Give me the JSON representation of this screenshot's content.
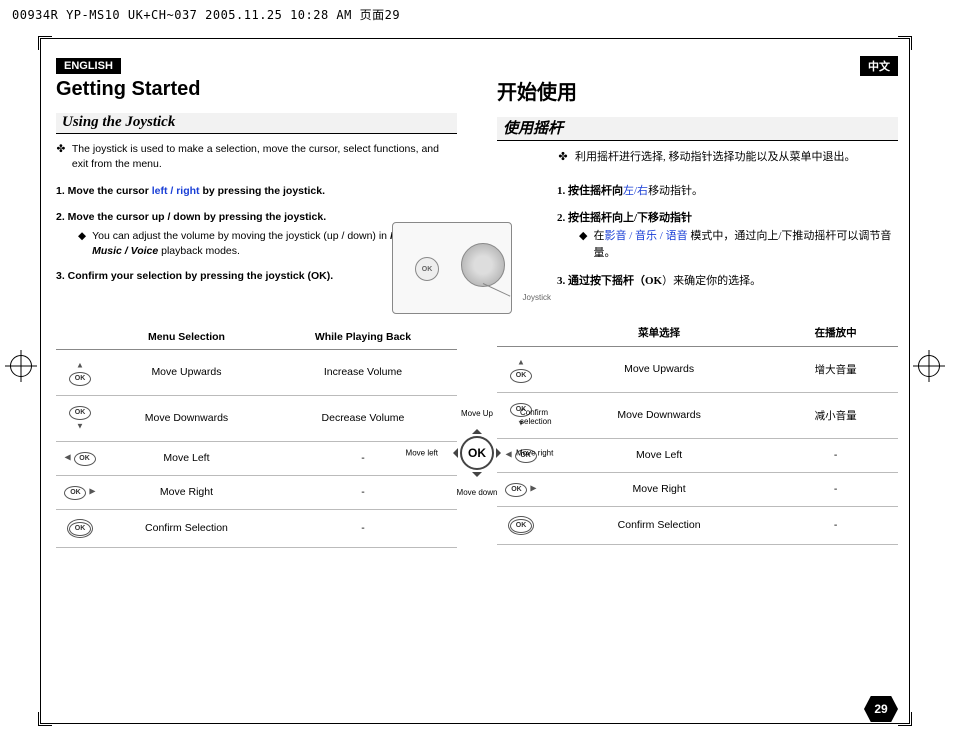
{
  "topbar": "00934R YP-MS10 UK+CH~037  2005.11.25 10:28 AM  页面29",
  "en": {
    "tag": "ENGLISH",
    "title": "Getting Started",
    "sub": "Using the Joystick",
    "intro": "The joystick is used to make a selection, move the cursor, select functions, and exit from the menu.",
    "step1a": "1.  Move the cursor ",
    "step1blue": "left / right",
    "step1b": " by pressing the joystick.",
    "step2": "2.  Move the cursor up / down by pressing the joystick.",
    "step2suba": "You can adjust the volume by moving the joystick (up / down) in ",
    "step2mode": "Movie / Music / Voice",
    "step2subb": " playback modes.",
    "step3": "3.  Confirm your selection by pressing the joystick (OK).",
    "table": {
      "h1": "Menu Selection",
      "h2": "While Playing Back",
      "rows": [
        {
          "label": "Move Upwards",
          "play": "Increase Volume",
          "dir": "up"
        },
        {
          "label": "Move Downwards",
          "play": "Decrease Volume",
          "dir": "down"
        },
        {
          "label": "Move Left",
          "play": "-",
          "dir": "left"
        },
        {
          "label": "Move Right",
          "play": "-",
          "dir": "right"
        },
        {
          "label": "Confirm Selection",
          "play": "-",
          "dir": "press"
        }
      ]
    }
  },
  "cn": {
    "tag": "中文",
    "title": "开始使用",
    "sub": "使用摇杆",
    "intro": "利用摇杆进行选择, 移动指针选择功能以及从菜单中退出。",
    "step1a": "1.  按住摇杆向",
    "step1blue": "左/右",
    "step1b": "移动指针。",
    "step2": "2.  按住摇杆向上/下移动指针",
    "step2suba": "在",
    "step2mode": "影音 / 音乐 / 语音",
    "step2subb": " 模式中，通过向上/下推动摇杆可以调节音量。",
    "step3a": "3.  通过按下摇杆（",
    "step3ok": "OK",
    "step3b": "）来确定你的选择。",
    "table": {
      "h1": "菜单选择",
      "h2": "在播放中",
      "rows": [
        {
          "label": "Move Upwards",
          "play": "增大音量",
          "dir": "up"
        },
        {
          "label": "Move Downwards",
          "play": "减小音量",
          "dir": "down"
        },
        {
          "label": "Move Left",
          "play": "-",
          "dir": "left"
        },
        {
          "label": "Move Right",
          "play": "-",
          "dir": "right"
        },
        {
          "label": "Confirm Selection",
          "play": "-",
          "dir": "press"
        }
      ]
    }
  },
  "device": {
    "joystick_label": "Joystick",
    "ok": "OK"
  },
  "compass": {
    "ok": "OK",
    "up": "Move Up",
    "down": "Move down",
    "left": "Move left",
    "right": "Move right",
    "confirm": "Confirm\nselection"
  },
  "pagenum": "29"
}
